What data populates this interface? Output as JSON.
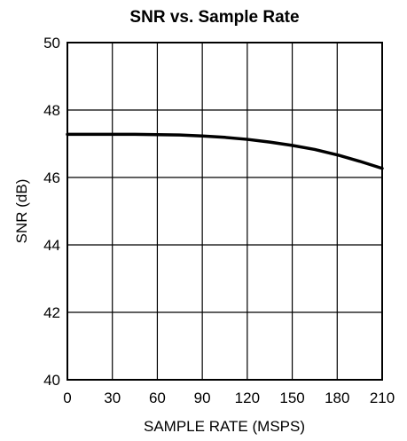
{
  "chart_data": {
    "type": "line",
    "title": "SNR vs. Sample Rate",
    "xlabel": "SAMPLE RATE (MSPS)",
    "ylabel": "SNR (dB)",
    "xlim": [
      0,
      210
    ],
    "ylim": [
      40,
      50
    ],
    "x_ticks": [
      0,
      30,
      60,
      90,
      120,
      150,
      180,
      210
    ],
    "y_ticks": [
      40,
      42,
      44,
      46,
      48,
      50
    ],
    "grid": true,
    "legend": "none",
    "series": [
      {
        "color": "#000000",
        "x": [
          0,
          15,
          30,
          45,
          60,
          75,
          90,
          105,
          120,
          135,
          150,
          165,
          180,
          195,
          210
        ],
        "y": [
          47.28,
          47.28,
          47.28,
          47.28,
          47.27,
          47.26,
          47.23,
          47.19,
          47.13,
          47.05,
          46.95,
          46.83,
          46.67,
          46.48,
          46.27
        ]
      }
    ]
  }
}
